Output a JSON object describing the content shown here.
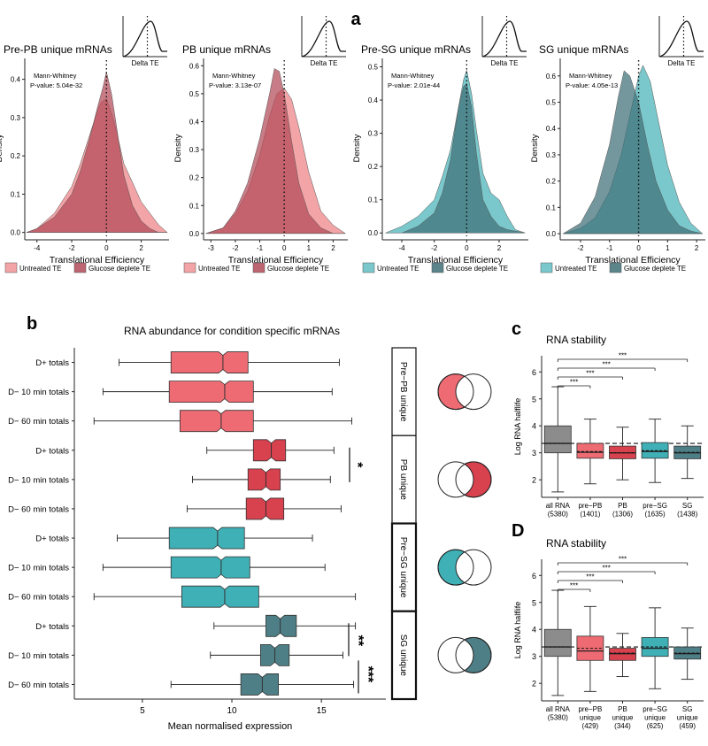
{
  "panel_labels": {
    "a": "a",
    "b": "b",
    "c": "c",
    "d": "D"
  },
  "colors": {
    "pink_light": "#f08a8e",
    "pink_dark": "#b24a57",
    "teal_light": "#55b8be",
    "teal_dark": "#3e6f77",
    "box_pink": "#ee6b73",
    "box_red": "#d8414e",
    "box_teal": "#3fb0b6",
    "box_slate": "#4e7f87",
    "box_grey": "#8c8c8c"
  },
  "chart_data": [
    {
      "type": "area",
      "id": "pre-pb",
      "title": "Pre-PB unique mRNAs",
      "annotation": [
        "Mann-Whitney",
        "P-value: 5.04e-32"
      ],
      "inset_label": "Delta TE",
      "xlabel": "Translational Efficiency",
      "ylabel": "Density",
      "xlim": [
        -4.7,
        3.6
      ],
      "ylim": [
        -0.01,
        0.45
      ],
      "xticks": [
        -4,
        -2,
        0,
        2
      ],
      "yticks": [
        0.0,
        0.1,
        0.2,
        0.3,
        0.4
      ],
      "legend": [
        "Untreated TE",
        "Glucose deplete TE"
      ],
      "series": [
        {
          "name": "Untreated TE",
          "x": [
            -4.6,
            -4,
            -3,
            -2,
            -1.5,
            -1,
            -0.5,
            -0.3,
            0,
            0.3,
            0.6,
            1,
            1.5,
            2,
            2.5,
            3,
            3.5
          ],
          "y": [
            0,
            0.01,
            0.05,
            0.12,
            0.18,
            0.25,
            0.32,
            0.34,
            0.35,
            0.31,
            0.26,
            0.18,
            0.13,
            0.08,
            0.05,
            0.02,
            0
          ]
        },
        {
          "name": "Glucose deplete TE",
          "x": [
            -4.6,
            -4,
            -3,
            -2,
            -1.5,
            -1,
            -0.5,
            -0.2,
            0,
            0.3,
            0.6,
            1,
            1.5,
            2,
            2.5,
            3,
            3.5
          ],
          "y": [
            0,
            0.01,
            0.04,
            0.1,
            0.16,
            0.24,
            0.33,
            0.38,
            0.42,
            0.36,
            0.27,
            0.15,
            0.07,
            0.03,
            0.01,
            0,
            0
          ]
        }
      ]
    },
    {
      "type": "area",
      "id": "pb",
      "title": "PB unique mRNAs",
      "annotation": [
        "Mann-Whitney",
        "P-value: 3.13e-07"
      ],
      "inset_label": "Delta TE",
      "xlabel": "Translational Efficiency",
      "ylabel": "Density",
      "xlim": [
        -3.3,
        2.6
      ],
      "ylim": [
        -0.01,
        0.62
      ],
      "xticks": [
        -3,
        -2,
        -1,
        0,
        1,
        2
      ],
      "yticks": [
        0.0,
        0.1,
        0.2,
        0.3,
        0.4,
        0.5,
        0.6
      ],
      "legend": [
        "Untreated TE",
        "Glucose deplete TE"
      ],
      "series": [
        {
          "name": "Untreated TE",
          "x": [
            -3.2,
            -2.5,
            -2,
            -1.5,
            -1,
            -0.6,
            -0.3,
            0,
            0.3,
            0.6,
            1,
            1.5,
            2,
            2.5
          ],
          "y": [
            0,
            0.02,
            0.07,
            0.15,
            0.28,
            0.42,
            0.5,
            0.52,
            0.48,
            0.38,
            0.22,
            0.08,
            0.03,
            0
          ]
        },
        {
          "name": "Glucose deplete TE",
          "x": [
            -3.2,
            -2.5,
            -2,
            -1.5,
            -1,
            -0.6,
            -0.4,
            -0.2,
            0,
            0.3,
            0.6,
            1,
            1.5,
            2,
            2.5
          ],
          "y": [
            0,
            0.02,
            0.08,
            0.18,
            0.34,
            0.5,
            0.59,
            0.58,
            0.5,
            0.33,
            0.18,
            0.07,
            0.02,
            0,
            0
          ]
        }
      ]
    },
    {
      "type": "area",
      "id": "pre-sg",
      "title": "Pre-SG unique mRNAs",
      "annotation": [
        "Mann-Whitney",
        "P-value: 2.01e-44"
      ],
      "inset_label": "Delta TE",
      "xlabel": "Translational Efficiency",
      "ylabel": "Density",
      "xlim": [
        -5.2,
        3.8
      ],
      "ylim": [
        -0.01,
        0.52
      ],
      "xticks": [
        -4,
        -2,
        0,
        2
      ],
      "yticks": [
        0.0,
        0.1,
        0.2,
        0.3,
        0.4,
        0.5
      ],
      "legend": [
        "Untreated TE",
        "Glucose deplete TE"
      ],
      "series": [
        {
          "name": "Untreated TE",
          "x": [
            -5,
            -4,
            -3,
            -2,
            -1.5,
            -1,
            -0.5,
            -0.2,
            0,
            0.3,
            0.6,
            1,
            1.5,
            2,
            2.5,
            3,
            3.6
          ],
          "y": [
            0,
            0.02,
            0.05,
            0.1,
            0.17,
            0.25,
            0.38,
            0.46,
            0.49,
            0.42,
            0.31,
            0.18,
            0.12,
            0.1,
            0.05,
            0.01,
            0
          ]
        },
        {
          "name": "Glucose deplete TE",
          "x": [
            -5,
            -4,
            -3,
            -2,
            -1.5,
            -1,
            -0.5,
            -0.2,
            0,
            0.3,
            0.6,
            1,
            1.5,
            2,
            2.5,
            3.6
          ],
          "y": [
            0,
            0,
            0.02,
            0.06,
            0.12,
            0.22,
            0.38,
            0.44,
            0.45,
            0.38,
            0.24,
            0.1,
            0.05,
            0.02,
            0.01,
            0
          ]
        }
      ]
    },
    {
      "type": "area",
      "id": "sg",
      "title": "SG unique mRNAs",
      "annotation": [
        "Mann-Whitney",
        "P-value: 4.05e-13"
      ],
      "inset_label": "Delta TE",
      "xlabel": "Translational Efficiency",
      "ylabel": "Density",
      "xlim": [
        -2.7,
        2.3
      ],
      "ylim": [
        -0.01,
        0.66
      ],
      "xticks": [
        -2,
        -1,
        0,
        1,
        2
      ],
      "yticks": [
        0.0,
        0.1,
        0.2,
        0.3,
        0.4,
        0.5,
        0.6
      ],
      "legend": [
        "Untreated TE",
        "Glucose deplete TE"
      ],
      "series": [
        {
          "name": "Untreated TE",
          "x": [
            -2.6,
            -2,
            -1.5,
            -1,
            -0.6,
            -0.3,
            0,
            0.15,
            0.4,
            0.7,
            1,
            1.4,
            1.8,
            2.2
          ],
          "y": [
            0,
            0.02,
            0.06,
            0.16,
            0.3,
            0.45,
            0.6,
            0.64,
            0.58,
            0.42,
            0.26,
            0.12,
            0.04,
            0
          ]
        },
        {
          "name": "Glucose deplete TE",
          "x": [
            -2.6,
            -2,
            -1.5,
            -1,
            -0.7,
            -0.5,
            -0.3,
            0,
            0.3,
            0.6,
            1,
            1.4,
            1.8,
            2.2
          ],
          "y": [
            0,
            0.04,
            0.14,
            0.34,
            0.52,
            0.62,
            0.6,
            0.5,
            0.34,
            0.2,
            0.09,
            0.03,
            0.01,
            0
          ]
        }
      ]
    },
    {
      "type": "boxplot",
      "id": "abundance",
      "orientation": "horizontal",
      "title": "RNA abundance for condition specific mRNAs",
      "xlabel": "Mean normalised expression",
      "xlim": [
        1.2,
        18.6
      ],
      "xticks": [
        5,
        10,
        15
      ],
      "categories": [
        "D+ totals",
        "D− 10 min totals",
        "D− 60 min totals",
        "D+ totals",
        "D− 10 min totals",
        "D− 60 min totals",
        "D+ totals",
        "D− 10 min totals",
        "D− 60 min totals",
        "D+ totals",
        "D− 10 min totals",
        "D− 60 min totals"
      ],
      "groups": [
        "Pre−PB unique",
        "PB unique",
        "Pre−SG unique",
        "SG unique"
      ],
      "boxes": [
        {
          "min": 3.7,
          "q1": 6.6,
          "median": 9.5,
          "q3": 10.9,
          "max": 16.0,
          "group": 0
        },
        {
          "min": 2.8,
          "q1": 6.5,
          "median": 9.6,
          "q3": 11.2,
          "max": 15.6,
          "group": 0
        },
        {
          "min": 2.3,
          "q1": 7.1,
          "median": 9.4,
          "q3": 11.2,
          "max": 16.7,
          "group": 0
        },
        {
          "min": 8.6,
          "q1": 11.2,
          "median": 12.2,
          "q3": 13.0,
          "max": 15.7,
          "group": 1
        },
        {
          "min": 7.8,
          "q1": 10.9,
          "median": 11.9,
          "q3": 12.7,
          "max": 15.5,
          "group": 1
        },
        {
          "min": 7.5,
          "q1": 10.8,
          "median": 11.9,
          "q3": 12.9,
          "max": 16.1,
          "group": 1
        },
        {
          "min": 3.6,
          "q1": 6.5,
          "median": 9.2,
          "q3": 10.7,
          "max": 14.5,
          "group": 2
        },
        {
          "min": 2.8,
          "q1": 6.6,
          "median": 9.4,
          "q3": 11.0,
          "max": 15.2,
          "group": 2
        },
        {
          "min": 2.3,
          "q1": 7.2,
          "median": 9.6,
          "q3": 11.5,
          "max": 16.9,
          "group": 2
        },
        {
          "min": 9.0,
          "q1": 11.9,
          "median": 12.7,
          "q3": 13.6,
          "max": 16.9,
          "group": 3
        },
        {
          "min": 8.8,
          "q1": 11.6,
          "median": 12.4,
          "q3": 13.2,
          "max": 16.2,
          "group": 3
        },
        {
          "min": 6.6,
          "q1": 10.5,
          "median": 11.7,
          "q3": 12.6,
          "max": 16.8,
          "group": 3
        }
      ],
      "significance": [
        "*",
        "**",
        "***"
      ]
    },
    {
      "type": "boxplot",
      "id": "stability-c",
      "orientation": "vertical",
      "title": "RNA stability",
      "ylabel": "Log RNA halflife",
      "ylim": [
        1.35,
        6.6
      ],
      "yticks": [
        2,
        3,
        4,
        5,
        6
      ],
      "categories": [
        [
          "all RNA",
          "(5380)"
        ],
        [
          "pre−PB",
          "(1401)"
        ],
        [
          "PB",
          "(1306)"
        ],
        [
          "pre−SG",
          "(1635)"
        ],
        [
          "SG",
          "(1438)"
        ]
      ],
      "reference_line": 3.35,
      "boxes": [
        {
          "min": 1.55,
          "q1": 3.0,
          "median": 3.35,
          "q3": 4.0,
          "max": 5.45,
          "mean": 3.35,
          "color": "box_grey"
        },
        {
          "min": 1.85,
          "q1": 2.8,
          "median": 3.02,
          "q3": 3.35,
          "max": 4.25,
          "mean": 3.05,
          "color": "box_pink"
        },
        {
          "min": 2.0,
          "q1": 2.78,
          "median": 3.0,
          "q3": 3.25,
          "max": 3.95,
          "mean": 3.0,
          "color": "box_red"
        },
        {
          "min": 1.9,
          "q1": 2.8,
          "median": 3.05,
          "q3": 3.38,
          "max": 4.25,
          "mean": 3.08,
          "color": "box_teal"
        },
        {
          "min": 2.05,
          "q1": 2.78,
          "median": 3.0,
          "q3": 3.25,
          "max": 4.0,
          "mean": 3.02,
          "color": "box_slate"
        }
      ],
      "significance": [
        "***",
        "***",
        "***",
        "***"
      ]
    },
    {
      "type": "boxplot",
      "id": "stability-d",
      "orientation": "vertical",
      "title": "RNA stability",
      "ylabel": "Log RNA halflife",
      "ylim": [
        1.35,
        6.6
      ],
      "yticks": [
        2,
        3,
        4,
        5,
        6
      ],
      "categories": [
        [
          "all RNA",
          "(5380)"
        ],
        [
          "pre−PB",
          "unique",
          "(429)"
        ],
        [
          "PB",
          "unique",
          "(344)"
        ],
        [
          "pre−SG",
          "unique",
          "(625)"
        ],
        [
          "SG",
          "unique",
          "(459)"
        ]
      ],
      "reference_line": 3.35,
      "boxes": [
        {
          "min": 1.55,
          "q1": 3.0,
          "median": 3.35,
          "q3": 4.0,
          "max": 5.45,
          "mean": 3.35,
          "color": "box_grey"
        },
        {
          "min": 1.7,
          "q1": 2.85,
          "median": 3.2,
          "q3": 3.75,
          "max": 4.85,
          "mean": 3.3,
          "color": "box_pink"
        },
        {
          "min": 2.25,
          "q1": 2.85,
          "median": 3.1,
          "q3": 3.3,
          "max": 3.85,
          "mean": 3.12,
          "color": "box_red"
        },
        {
          "min": 1.8,
          "q1": 3.0,
          "median": 3.3,
          "q3": 3.7,
          "max": 4.8,
          "mean": 3.35,
          "color": "box_teal"
        },
        {
          "min": 2.15,
          "q1": 2.9,
          "median": 3.1,
          "q3": 3.35,
          "max": 4.05,
          "mean": 3.12,
          "color": "box_slate"
        }
      ],
      "significance": [
        "***",
        "***",
        "***",
        "***"
      ]
    }
  ]
}
